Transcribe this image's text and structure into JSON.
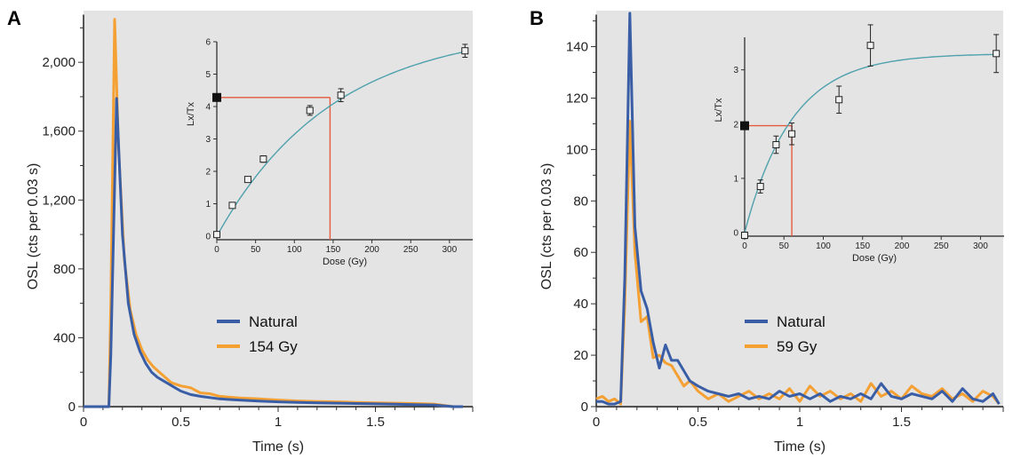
{
  "chart_data": [
    {
      "panel": "A",
      "type": "line",
      "xlabel": "Time (s)",
      "ylabel": "OSL (cts per 0.03 s)",
      "xlim": [
        0,
        2.0
      ],
      "ylim": [
        0,
        2300
      ],
      "xticks": [
        0,
        0.5,
        1,
        1.5
      ],
      "xtick_labels": [
        "0",
        "0.5",
        "1",
        "1.5"
      ],
      "yticks": [
        0,
        400,
        800,
        1200,
        1600,
        2000
      ],
      "ytick_labels": [
        "0",
        "400",
        "800",
        "1,200",
        "1,600",
        "2,000"
      ],
      "series": [
        {
          "name": "Natural",
          "color": "#3a5ea6",
          "x": [
            0,
            0.13,
            0.14,
            0.17,
            0.2,
            0.23,
            0.26,
            0.29,
            0.32,
            0.35,
            0.38,
            0.41,
            0.44,
            0.47,
            0.5,
            0.55,
            0.6,
            0.7,
            0.8,
            0.9,
            1.0,
            1.1,
            1.2,
            1.3,
            1.4,
            1.5,
            1.6,
            1.7,
            1.8,
            1.9,
            1.95
          ],
          "y": [
            0,
            0,
            300,
            1790,
            1000,
            600,
            420,
            320,
            250,
            200,
            170,
            150,
            130,
            110,
            90,
            70,
            60,
            45,
            38,
            32,
            28,
            25,
            22,
            20,
            18,
            16,
            14,
            12,
            10,
            0,
            0
          ]
        },
        {
          "name": "154 Gy",
          "color": "#f5a033",
          "x": [
            0,
            0.13,
            0.14,
            0.16,
            0.18,
            0.21,
            0.24,
            0.27,
            0.3,
            0.33,
            0.36,
            0.39,
            0.42,
            0.45,
            0.5,
            0.55,
            0.6,
            0.65,
            0.7,
            0.8,
            0.9,
            1.0,
            1.1,
            1.2,
            1.3,
            1.4,
            1.5,
            1.6,
            1.7,
            1.8,
            1.9,
            1.95
          ],
          "y": [
            0,
            0,
            600,
            2250,
            1500,
            850,
            560,
            420,
            330,
            270,
            230,
            200,
            170,
            140,
            120,
            110,
            80,
            75,
            60,
            50,
            45,
            38,
            33,
            30,
            28,
            25,
            22,
            20,
            18,
            15,
            0,
            0
          ]
        }
      ],
      "legend": [
        "Natural",
        "154 Gy"
      ],
      "inset": {
        "xlabel": "Dose (Gy)",
        "ylabel": "Lx/Tx",
        "xlim": [
          0,
          330
        ],
        "ylim": [
          0,
          6
        ],
        "xticks": [
          0,
          50,
          100,
          150,
          200,
          250,
          300
        ],
        "yticks": [
          0,
          1,
          2,
          3,
          4,
          5,
          6
        ],
        "points": [
          {
            "x": 0,
            "y": 0.05,
            "err": 0.05
          },
          {
            "x": 20,
            "y": 0.95,
            "err": 0.06
          },
          {
            "x": 40,
            "y": 1.75,
            "err": 0.08
          },
          {
            "x": 60,
            "y": 2.38,
            "err": 0.1
          },
          {
            "x": 120,
            "y": 3.88,
            "err": 0.15
          },
          {
            "x": 160,
            "y": 4.35,
            "err": 0.2
          },
          {
            "x": 320,
            "y": 5.72,
            "err": 0.2
          }
        ],
        "fit": {
          "a": 6.46,
          "d0": 150
        },
        "natural": {
          "y": 4.28,
          "dose": 146
        },
        "fit_color": "#4fa1ad",
        "read_color": "#e35a3c"
      }
    },
    {
      "panel": "B",
      "type": "line",
      "xlabel": "Time (s)",
      "ylabel": "OSL (cts per 0.03 s)",
      "xlim": [
        0,
        2.0
      ],
      "ylim": [
        0,
        154
      ],
      "xticks": [
        0,
        0.5,
        1,
        1.5
      ],
      "xtick_labels": [
        "0",
        "0.5",
        "1",
        "1.5"
      ],
      "yticks": [
        0,
        20,
        40,
        60,
        80,
        100,
        120,
        140
      ],
      "ytick_labels": [
        "0",
        "20",
        "40",
        "60",
        "80",
        "100",
        "120",
        "140"
      ],
      "series": [
        {
          "name": "Natural",
          "color": "#3a5ea6",
          "x": [
            0,
            0.03,
            0.06,
            0.09,
            0.12,
            0.14,
            0.165,
            0.19,
            0.22,
            0.25,
            0.28,
            0.31,
            0.34,
            0.37,
            0.4,
            0.43,
            0.46,
            0.5,
            0.55,
            0.6,
            0.65,
            0.7,
            0.75,
            0.8,
            0.85,
            0.9,
            0.95,
            1.0,
            1.05,
            1.1,
            1.15,
            1.2,
            1.25,
            1.3,
            1.35,
            1.4,
            1.45,
            1.5,
            1.55,
            1.6,
            1.65,
            1.7,
            1.75,
            1.8,
            1.85,
            1.9,
            1.95,
            1.98
          ],
          "y": [
            2,
            2,
            1,
            1,
            2,
            50,
            153,
            70,
            45,
            38,
            25,
            15,
            24,
            18,
            18,
            14,
            10,
            8,
            6,
            5,
            4,
            5,
            3,
            4,
            3,
            6,
            4,
            5,
            3,
            5,
            2,
            4,
            3,
            5,
            3,
            9,
            4,
            3,
            5,
            4,
            3,
            6,
            2,
            7,
            3,
            2,
            5,
            1
          ]
        },
        {
          "name": "59 Gy",
          "color": "#f5a033",
          "x": [
            0,
            0.03,
            0.06,
            0.09,
            0.12,
            0.14,
            0.165,
            0.19,
            0.22,
            0.25,
            0.28,
            0.31,
            0.34,
            0.37,
            0.4,
            0.43,
            0.46,
            0.5,
            0.55,
            0.6,
            0.65,
            0.7,
            0.75,
            0.8,
            0.85,
            0.9,
            0.95,
            1.0,
            1.05,
            1.1,
            1.15,
            1.2,
            1.25,
            1.3,
            1.35,
            1.4,
            1.45,
            1.5,
            1.55,
            1.6,
            1.65,
            1.7,
            1.75,
            1.8,
            1.85,
            1.9,
            1.95,
            1.98
          ],
          "y": [
            3,
            4,
            2,
            3,
            1,
            40,
            111,
            60,
            33,
            35,
            19,
            20,
            17,
            16,
            12,
            8,
            10,
            6,
            3,
            5,
            2,
            4,
            6,
            3,
            5,
            3,
            7,
            2,
            8,
            4,
            6,
            3,
            5,
            2,
            9,
            4,
            6,
            3,
            8,
            5,
            4,
            7,
            3,
            5,
            2,
            6,
            4,
            1
          ]
        }
      ],
      "legend": [
        "Natural",
        "59 Gy"
      ],
      "inset": {
        "xlabel": "Dose (Gy)",
        "ylabel": "Lx/Tx",
        "xlim": [
          0,
          330
        ],
        "ylim": [
          0,
          3.6
        ],
        "xticks": [
          0,
          50,
          100,
          150,
          200,
          250,
          300
        ],
        "yticks": [
          0,
          1,
          2,
          3
        ],
        "points": [
          {
            "x": 0,
            "y": -0.05,
            "err": 0.06
          },
          {
            "x": 20,
            "y": 0.85,
            "err": 0.12
          },
          {
            "x": 40,
            "y": 1.62,
            "err": 0.16
          },
          {
            "x": 60,
            "y": 1.82,
            "err": 0.2
          },
          {
            "x": 120,
            "y": 2.45,
            "err": 0.25
          },
          {
            "x": 160,
            "y": 3.45,
            "err": 0.38
          },
          {
            "x": 320,
            "y": 3.3,
            "err": 0.35
          }
        ],
        "fit": {
          "a": 3.3,
          "d0": 60
        },
        "natural": {
          "y": 1.97,
          "dose": 60
        },
        "fit_color": "#4fa1ad",
        "read_color": "#e35a3c"
      }
    }
  ]
}
